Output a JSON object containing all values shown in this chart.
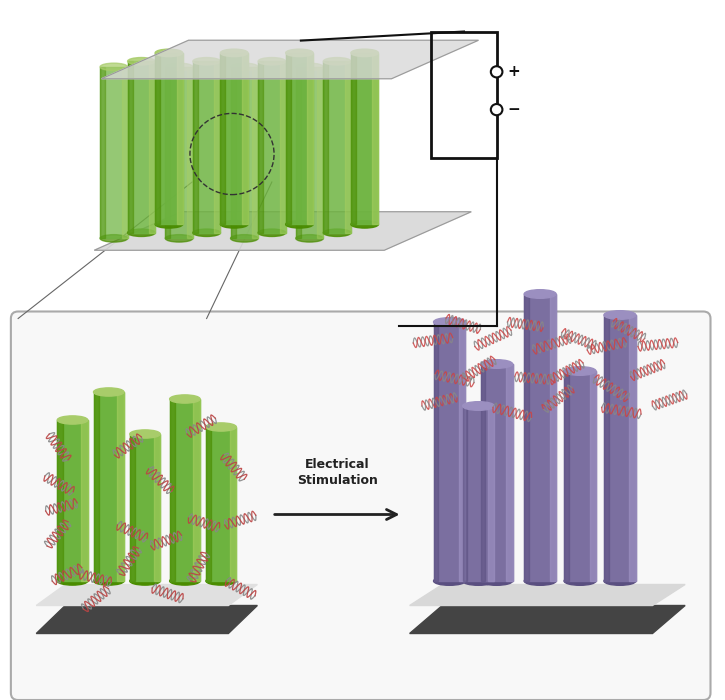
{
  "bg_color": "#ffffff",
  "plate_color": "#d8d8d8",
  "cylinder_green_light": "#6db33f",
  "cylinder_green_top": "#a8cc6a",
  "cylinder_green_dark": "#4a8c00",
  "cylinder_purple_main": "#7b6fa0",
  "cylinder_purple_light": "#9b8fc0",
  "cylinder_purple_dark": "#5a4f80",
  "panel_border_color": "#aaaaaa",
  "panel_bg": "#f8f8f8",
  "arrow_color": "#222222",
  "dna_color_gray": "#888888",
  "dna_color_red": "#cc4444",
  "text_color": "#222222",
  "label_electrical": "Electrical\nStimulation",
  "label_plus": "+",
  "label_minus": "−",
  "figsize": [
    7.25,
    7.0
  ],
  "dpi": 100
}
